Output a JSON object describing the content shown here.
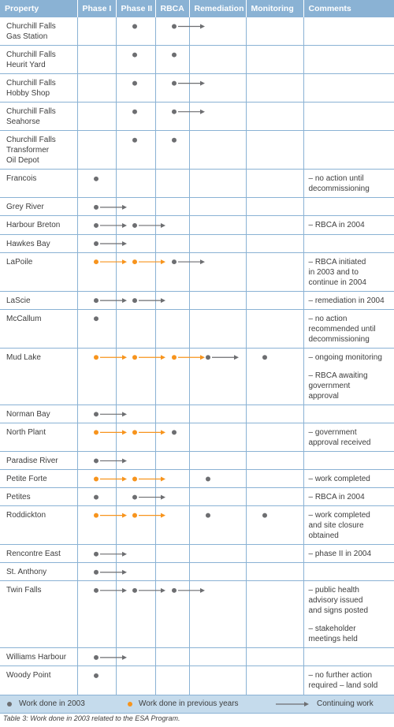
{
  "colors": {
    "current": "#6d6e71",
    "previous": "#f7941d",
    "header": "#8ab2d4",
    "legend_bg": "#c5dbec"
  },
  "columns": [
    "Property",
    "Phase I",
    "Phase II",
    "RBCA",
    "Remediation",
    "Monitoring",
    "Comments"
  ],
  "rows": [
    {
      "property": [
        "Churchill Falls",
        "Gas Station"
      ],
      "comments": [],
      "marks": [
        {
          "stage": "phase2",
          "kind": "current"
        },
        {
          "stage": "rbca",
          "kind": "current",
          "continuing": true
        }
      ]
    },
    {
      "property": [
        "Churchill Falls",
        "Heurit Yard"
      ],
      "comments": [],
      "marks": [
        {
          "stage": "phase2",
          "kind": "current"
        },
        {
          "stage": "rbca",
          "kind": "current"
        }
      ]
    },
    {
      "property": [
        "Churchill Falls",
        "Hobby Shop"
      ],
      "comments": [],
      "marks": [
        {
          "stage": "phase2",
          "kind": "current"
        },
        {
          "stage": "rbca",
          "kind": "current",
          "continuing": true
        }
      ]
    },
    {
      "property": [
        "Churchill Falls",
        "Seahorse"
      ],
      "comments": [],
      "marks": [
        {
          "stage": "phase2",
          "kind": "current"
        },
        {
          "stage": "rbca",
          "kind": "current",
          "continuing": true
        }
      ]
    },
    {
      "property": [
        "Churchill Falls",
        "Transformer",
        "Oil Depot"
      ],
      "comments": [],
      "marks": [
        {
          "stage": "phase2",
          "kind": "current"
        },
        {
          "stage": "rbca",
          "kind": "current"
        }
      ]
    },
    {
      "property": [
        "Francois"
      ],
      "comments": [
        [
          "– no action until",
          "decommissioning"
        ]
      ],
      "marks": [
        {
          "stage": "phase1",
          "kind": "current"
        }
      ]
    },
    {
      "property": [
        "Grey River"
      ],
      "comments": [],
      "marks": [
        {
          "stage": "phase1",
          "kind": "current",
          "continuing": true
        }
      ]
    },
    {
      "property": [
        "Harbour Breton"
      ],
      "comments": [
        [
          "– RBCA in 2004"
        ]
      ],
      "marks": [
        {
          "stage": "phase1",
          "kind": "current",
          "continuing": true
        },
        {
          "stage": "phase2",
          "kind": "current",
          "continuing": true
        }
      ]
    },
    {
      "property": [
        "Hawkes Bay"
      ],
      "comments": [],
      "marks": [
        {
          "stage": "phase1",
          "kind": "current",
          "continuing": true
        }
      ]
    },
    {
      "property": [
        "LaPoile"
      ],
      "comments": [
        [
          "– RBCA initiated",
          "in 2003 and to",
          "continue in 2004"
        ]
      ],
      "marks": [
        {
          "stage": "phase1",
          "kind": "previous",
          "continuing": true
        },
        {
          "stage": "phase2",
          "kind": "previous",
          "continuing": true
        },
        {
          "stage": "rbca",
          "kind": "current",
          "continuing": true
        }
      ]
    },
    {
      "property": [
        "LaScie"
      ],
      "comments": [
        [
          "– remediation in 2004"
        ]
      ],
      "marks": [
        {
          "stage": "phase1",
          "kind": "current",
          "continuing": true
        },
        {
          "stage": "phase2",
          "kind": "current",
          "continuing": true
        }
      ]
    },
    {
      "property": [
        "McCallum"
      ],
      "comments": [
        [
          "– no action",
          "recommended until",
          "decommissioning"
        ]
      ],
      "marks": [
        {
          "stage": "phase1",
          "kind": "current"
        }
      ]
    },
    {
      "property": [
        "Mud Lake"
      ],
      "comments": [
        [
          "– ongoing monitoring"
        ],
        [
          "– RBCA awaiting",
          "government",
          "approval"
        ]
      ],
      "marks": [
        {
          "stage": "phase1",
          "kind": "previous",
          "continuing": true
        },
        {
          "stage": "phase2",
          "kind": "previous",
          "continuing": true
        },
        {
          "stage": "rbca",
          "kind": "previous",
          "continuing": true
        },
        {
          "stage": "remediation",
          "kind": "current",
          "continuing": true
        },
        {
          "stage": "monitoring",
          "kind": "current"
        }
      ]
    },
    {
      "property": [
        "Norman Bay"
      ],
      "comments": [],
      "marks": [
        {
          "stage": "phase1",
          "kind": "current",
          "continuing": true
        }
      ]
    },
    {
      "property": [
        "North Plant"
      ],
      "comments": [
        [
          "– government",
          "approval received"
        ]
      ],
      "marks": [
        {
          "stage": "phase1",
          "kind": "previous",
          "continuing": true
        },
        {
          "stage": "phase2",
          "kind": "previous",
          "continuing": true
        },
        {
          "stage": "rbca",
          "kind": "current"
        }
      ]
    },
    {
      "property": [
        "Paradise River"
      ],
      "comments": [],
      "marks": [
        {
          "stage": "phase1",
          "kind": "current",
          "continuing": true
        }
      ]
    },
    {
      "property": [
        "Petite Forte"
      ],
      "comments": [
        [
          "– work completed"
        ]
      ],
      "marks": [
        {
          "stage": "phase1",
          "kind": "previous",
          "continuing": true
        },
        {
          "stage": "phase2",
          "kind": "previous",
          "continuing": true
        },
        {
          "stage": "remediation",
          "kind": "current"
        }
      ]
    },
    {
      "property": [
        "Petites"
      ],
      "comments": [
        [
          "– RBCA in 2004"
        ]
      ],
      "marks": [
        {
          "stage": "phase1",
          "kind": "current"
        },
        {
          "stage": "phase2",
          "kind": "current",
          "continuing": true
        }
      ]
    },
    {
      "property": [
        "Roddickton"
      ],
      "comments": [
        [
          "– work completed",
          "and site closure",
          "obtained"
        ]
      ],
      "marks": [
        {
          "stage": "phase1",
          "kind": "previous",
          "continuing": true
        },
        {
          "stage": "phase2",
          "kind": "previous",
          "continuing": true
        },
        {
          "stage": "remediation",
          "kind": "current"
        },
        {
          "stage": "monitoring",
          "kind": "current"
        }
      ]
    },
    {
      "property": [
        "Rencontre East"
      ],
      "comments": [
        [
          "– phase II in 2004"
        ]
      ],
      "marks": [
        {
          "stage": "phase1",
          "kind": "current",
          "continuing": true
        }
      ]
    },
    {
      "property": [
        "St. Anthony"
      ],
      "comments": [],
      "marks": [
        {
          "stage": "phase1",
          "kind": "current",
          "continuing": true
        }
      ]
    },
    {
      "property": [
        "Twin Falls"
      ],
      "comments": [
        [
          "– public health",
          "advisory issued",
          "and signs posted"
        ],
        [
          "– stakeholder",
          "meetings held"
        ]
      ],
      "marks": [
        {
          "stage": "phase1",
          "kind": "current",
          "continuing": true
        },
        {
          "stage": "phase2",
          "kind": "current",
          "continuing": true
        },
        {
          "stage": "rbca",
          "kind": "current",
          "continuing": true
        }
      ]
    },
    {
      "property": [
        "Williams Harbour"
      ],
      "comments": [],
      "marks": [
        {
          "stage": "phase1",
          "kind": "current",
          "continuing": true
        }
      ]
    },
    {
      "property": [
        "Woody Point"
      ],
      "comments": [
        [
          "– no further action",
          "required – land sold"
        ]
      ],
      "marks": [
        {
          "stage": "phase1",
          "kind": "current"
        }
      ]
    }
  ],
  "legend": {
    "current": "Work done in 2003",
    "previous": "Work done in previous years",
    "continuing": "Continuing work"
  },
  "caption": "Table 3: Work done in 2003 related to the ESA Program."
}
